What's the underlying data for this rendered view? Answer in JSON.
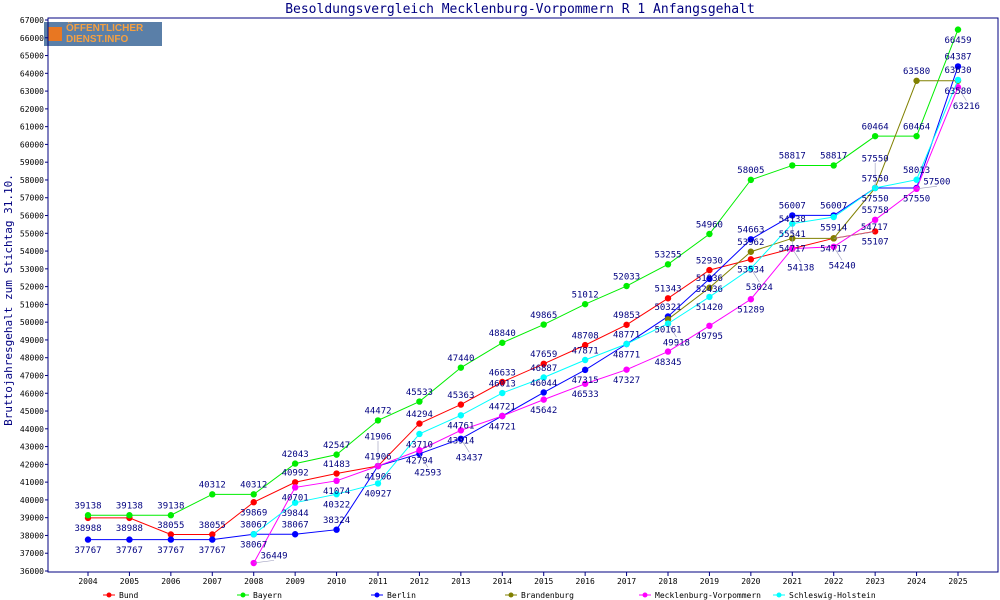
{
  "chart_data": {
    "type": "line",
    "title": "Besoldungsvergleich Mecklenburg-Vorpommern R 1 Anfangsgehalt",
    "xlabel": "",
    "ylabel": "Bruttojahresgehalt zum Stichtag 31.10.",
    "ylim": [
      36000,
      67000
    ],
    "ystep": 1000,
    "grid": false,
    "legend_position": "bottom",
    "x": [
      2004,
      2005,
      2006,
      2007,
      2008,
      2009,
      2010,
      2011,
      2012,
      2013,
      2014,
      2015,
      2016,
      2017,
      2018,
      2019,
      2020,
      2021,
      2022,
      2023,
      2024,
      2025
    ],
    "series": [
      {
        "name": "Bund",
        "color": "#ff0000",
        "values": [
          38988,
          38988,
          38055,
          38055,
          39869,
          40992,
          41483,
          41906,
          44294,
          45363,
          46633,
          47659,
          48708,
          49853,
          51343,
          52930,
          53534,
          54138,
          54717,
          55107,
          null,
          null
        ]
      },
      {
        "name": "Bayern",
        "color": "#00ee00",
        "values": [
          39138,
          39138,
          39138,
          40312,
          40312,
          42043,
          42547,
          44472,
          45533,
          47440,
          48840,
          49865,
          51012,
          52033,
          53255,
          54960,
          58005,
          58817,
          58817,
          60464,
          60464,
          66459
        ]
      },
      {
        "name": "Berlin",
        "color": "#0000ff",
        "values": [
          37767,
          37767,
          37767,
          37767,
          38067,
          38067,
          38324,
          41906,
          42593,
          43437,
          44721,
          46044,
          47315,
          48771,
          50321,
          52436,
          54663,
          56007,
          56007,
          57550,
          57550,
          64387
        ]
      },
      {
        "name": "Brandenburg",
        "color": "#808000",
        "values": [
          null,
          null,
          null,
          null,
          null,
          null,
          null,
          null,
          null,
          null,
          null,
          null,
          null,
          null,
          50161,
          51936,
          53962,
          54717,
          54717,
          57550,
          63580,
          63580
        ]
      },
      {
        "name": "Mecklenburg-Vorpommern",
        "color": "#ff00ff",
        "values": [
          null,
          null,
          null,
          null,
          36449,
          40701,
          41074,
          41906,
          42794,
          43914,
          44721,
          45642,
          46533,
          47327,
          48345,
          49795,
          51289,
          54138,
          54240,
          55758,
          57500,
          63216
        ]
      },
      {
        "name": "Schleswig-Holstein",
        "color": "#00ffff",
        "values": [
          null,
          null,
          null,
          null,
          38067,
          39844,
          40322,
          40927,
          43710,
          44761,
          46013,
          46887,
          47871,
          48771,
          49918,
          51420,
          53024,
          55541,
          55914,
          57550,
          58013,
          63630
        ]
      }
    ]
  },
  "logo": {
    "line1": "ÖFFENTLICHER",
    "line2": "DIENST.INFO"
  },
  "colors": {
    "axis": "#000080",
    "label": "#000080"
  }
}
